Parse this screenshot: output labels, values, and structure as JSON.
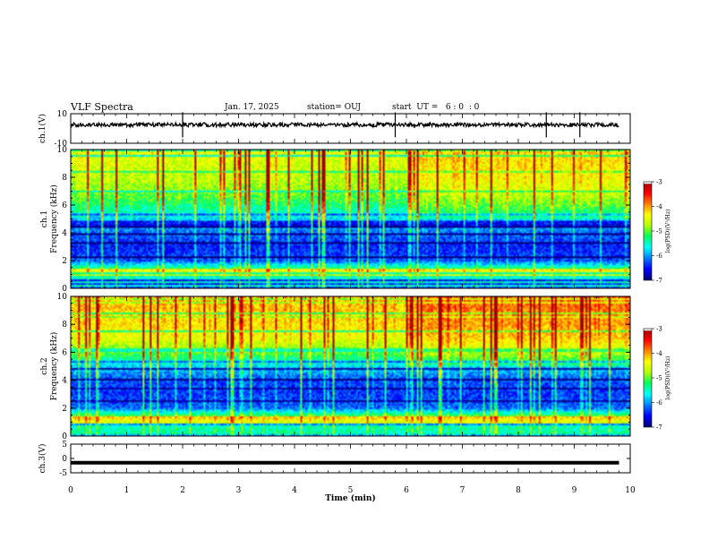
{
  "header": {
    "title": "VLF Spectra",
    "date": "Jan. 17, 2025",
    "station": "station= OUJ",
    "start_ut": "start  UT =   6 : 0  : 0"
  },
  "colors": {
    "waveform": "#000000",
    "colormap": [
      "#00007a",
      "#0000ff",
      "#0080ff",
      "#00ffff",
      "#00ff60",
      "#b0ff00",
      "#ffff00",
      "#ff8000",
      "#ff0000",
      "#a00000",
      "#ffffff"
    ]
  },
  "chart_data": [
    {
      "type": "line",
      "name": "ch1-waveform",
      "ylabel": "ch.1(V)",
      "ylim": [
        -10,
        10
      ],
      "yticks": [
        "10",
        "-10"
      ],
      "baseline_value": 2.5,
      "xlim": [
        0,
        10
      ],
      "notable_spikes_min": [
        2.0,
        5.8,
        8.5,
        9.1
      ]
    },
    {
      "type": "heatmap",
      "name": "ch1-spectrogram",
      "ylabel_line1": "ch.1",
      "ylabel_line2": "Frequency  (kHz)",
      "ylim": [
        0,
        10
      ],
      "yticks": [
        "10",
        "8",
        "6",
        "4",
        "2",
        "0"
      ],
      "xlim": [
        0,
        10
      ],
      "intensity_profile_khz": [
        [
          0,
          -5.5
        ],
        [
          1,
          -5.6
        ],
        [
          1.4,
          -5.2
        ],
        [
          2,
          -6.3
        ],
        [
          3,
          -6.5
        ],
        [
          4,
          -6.2
        ],
        [
          5,
          -5.8
        ],
        [
          6,
          -5.3
        ],
        [
          7,
          -4.9
        ],
        [
          8,
          -4.7
        ],
        [
          9,
          -4.6
        ],
        [
          10,
          -4.5
        ]
      ],
      "colorbar": {
        "label": "log(PSD)(V²/Hz)",
        "ticks": [
          "-3",
          "-4",
          "-5",
          "-6",
          "-7"
        ],
        "range": [
          -7,
          -3
        ]
      }
    },
    {
      "type": "heatmap",
      "name": "ch2-spectrogram",
      "ylabel_line1": "ch.2",
      "ylabel_line2": "Frequency  (kHz)",
      "ylim": [
        0,
        10
      ],
      "yticks": [
        "10",
        "8",
        "6",
        "4",
        "2",
        "0"
      ],
      "xlim": [
        0,
        10
      ],
      "intensity_profile_khz": [
        [
          0,
          -5.4
        ],
        [
          1,
          -5.5
        ],
        [
          1.4,
          -5.0
        ],
        [
          2,
          -6.2
        ],
        [
          3,
          -6.4
        ],
        [
          4,
          -6.3
        ],
        [
          5,
          -5.8
        ],
        [
          6,
          -5.0
        ],
        [
          7,
          -4.5
        ],
        [
          8,
          -4.3
        ],
        [
          9,
          -4.2
        ],
        [
          10,
          -4.1
        ]
      ],
      "colorbar": {
        "label": "log(PSD)(V²/Hz)",
        "ticks": [
          "-3",
          "-4",
          "-5",
          "-6",
          "-7"
        ],
        "range": [
          -7,
          -3
        ]
      }
    },
    {
      "type": "line",
      "name": "ch3-waveform",
      "ylabel": "ch.3(V)",
      "ylim": [
        -5,
        5
      ],
      "yticks": [
        "5",
        "0",
        "-5"
      ],
      "baseline_value": -1.5,
      "xlim": [
        0,
        10
      ]
    }
  ],
  "xaxis": {
    "label": "Time  (min)",
    "ticks": [
      "0",
      "1",
      "2",
      "3",
      "4",
      "5",
      "6",
      "7",
      "8",
      "9",
      "10"
    ]
  }
}
